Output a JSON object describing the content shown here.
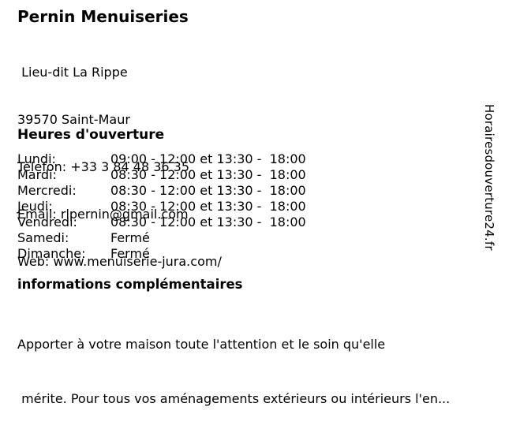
{
  "business": {
    "name": "Pernin Menuiseries",
    "address_line1": " Lieu-dit La Rippe",
    "address_line2": "39570 Saint-Maur",
    "phone_line": "Telefon: +33 3 84 48 36 35",
    "email_line": "Email: rlpernin@gmail.com",
    "web_line": "Web: www.menuiserie-jura.com/"
  },
  "hours": {
    "heading": "Heures d'ouverture",
    "rows": [
      {
        "day": "Lundi:",
        "time": "09:00 - 12:00 et 13:30 -  18:00"
      },
      {
        "day": "Mardi:",
        "time": "08:30 - 12:00 et 13:30 -  18:00"
      },
      {
        "day": "Mercredi:",
        "time": "08:30 - 12:00 et 13:30 -  18:00"
      },
      {
        "day": "Jeudi:",
        "time": "08:30 - 12:00 et 13:30 -  18:00"
      },
      {
        "day": "Vendredi:",
        "time": "08:30 - 12:00 et 13:30 -  18:00"
      },
      {
        "day": "Samedi:",
        "time": "Fermé"
      },
      {
        "day": "Dimanche:",
        "time": "Fermé"
      }
    ]
  },
  "info": {
    "heading": "informations complémentaires",
    "line1": "Apporter à votre maison toute l'attention et le soin qu'elle",
    "line2": " mérite. Pour tous vos aménagements extérieurs ou intérieurs l'en..."
  },
  "watermark": "Horairesdouverture24.fr",
  "colors": {
    "background": "#ffffff",
    "text": "#000000"
  }
}
